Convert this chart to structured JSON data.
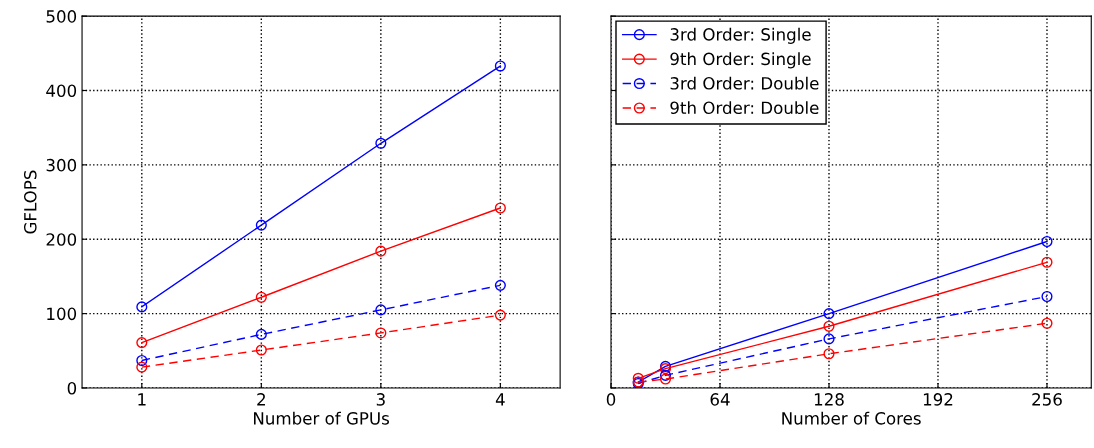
{
  "chart_data": [
    {
      "type": "line",
      "xlabel": "Number of GPUs",
      "ylabel": "GFLOPS",
      "x": [
        1,
        2,
        3,
        4
      ],
      "xlim": [
        0.5,
        4.5
      ],
      "xticks": [
        1,
        2,
        3,
        4
      ],
      "ylim": [
        0,
        500
      ],
      "yticks": [
        0,
        100,
        200,
        300,
        400,
        500
      ],
      "grid": true,
      "marker": "circle",
      "legend": false,
      "series": [
        {
          "color": "#0000ff",
          "line_style": "solid",
          "values": [
            109,
            219,
            329,
            433
          ]
        },
        {
          "color": "#ff0000",
          "line_style": "solid",
          "values": [
            61,
            122,
            184,
            242
          ]
        },
        {
          "color": "#0000ff",
          "line_style": "dashed",
          "values": [
            37,
            72,
            105,
            138
          ]
        },
        {
          "color": "#ff0000",
          "line_style": "dashed",
          "values": [
            28,
            51,
            74,
            98
          ]
        }
      ]
    },
    {
      "type": "line",
      "xlabel": "Number of Cores",
      "x": [
        16,
        32,
        128,
        256
      ],
      "xlim": [
        0,
        282
      ],
      "xticks": [
        0,
        64,
        128,
        192,
        256
      ],
      "ylim": [
        0,
        500
      ],
      "yticks": [
        0,
        100,
        200,
        300,
        400,
        500
      ],
      "tick_labels": "x",
      "grid": true,
      "marker": "circle",
      "legend": "top left",
      "series": [
        {
          "name": "3rd Order: Single",
          "color": "#0000ff",
          "line_style": "solid",
          "values": [
            8,
            29,
            100,
            197
          ]
        },
        {
          "name": "9th Order: Single",
          "color": "#ff0000",
          "line_style": "solid",
          "values": [
            13,
            26,
            83,
            169
          ]
        },
        {
          "name": "3rd Order: Double",
          "color": "#0000ff",
          "line_style": "dashed",
          "values": [
            6,
            17,
            66,
            123
          ]
        },
        {
          "name": "9th Order: Double",
          "color": "#ff0000",
          "line_style": "dashed",
          "values": [
            8,
            12,
            46,
            87
          ]
        }
      ]
    }
  ]
}
